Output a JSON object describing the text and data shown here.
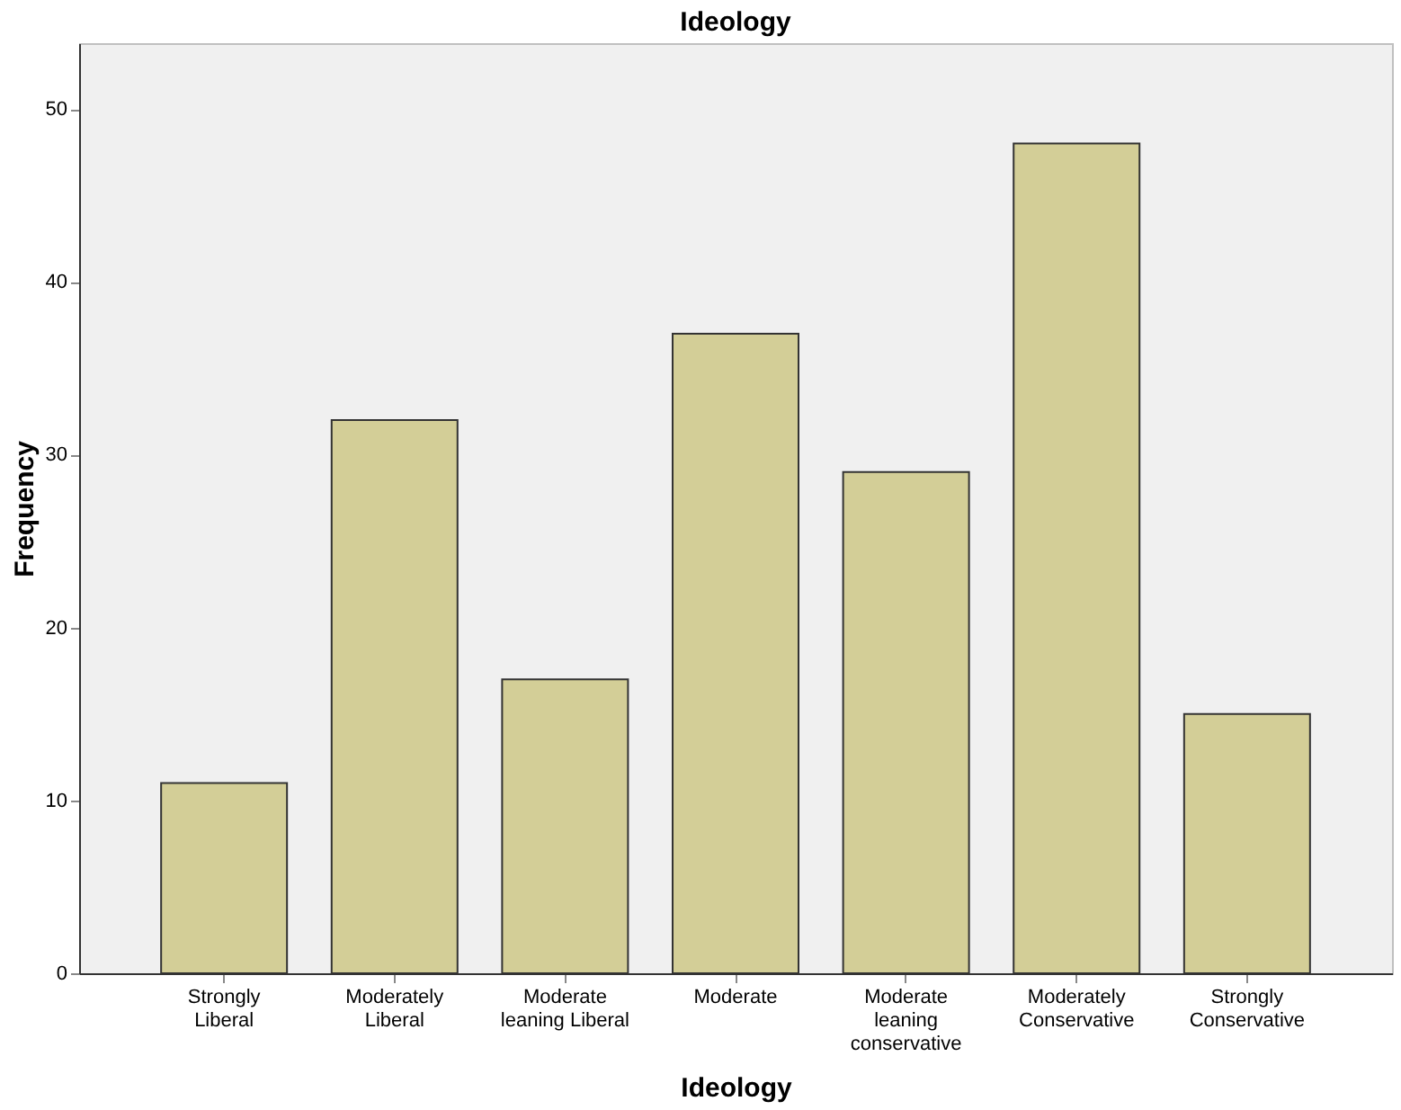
{
  "chart_data": {
    "type": "bar",
    "title": "Ideology",
    "xlabel": "Ideology",
    "ylabel": "Frequency",
    "categories": [
      "Strongly Liberal",
      "Moderately Liberal",
      "Moderate leaning Liberal",
      "Moderate",
      "Moderate leaning conservative",
      "Moderately Conservative",
      "Strongly Conservative"
    ],
    "values": [
      11,
      32,
      17,
      37,
      29,
      48,
      15
    ],
    "color": "#d3ce97",
    "ylim": [
      0,
      53.8
    ],
    "yticks": [
      0,
      10,
      20,
      30,
      40,
      50
    ],
    "grid": false
  }
}
